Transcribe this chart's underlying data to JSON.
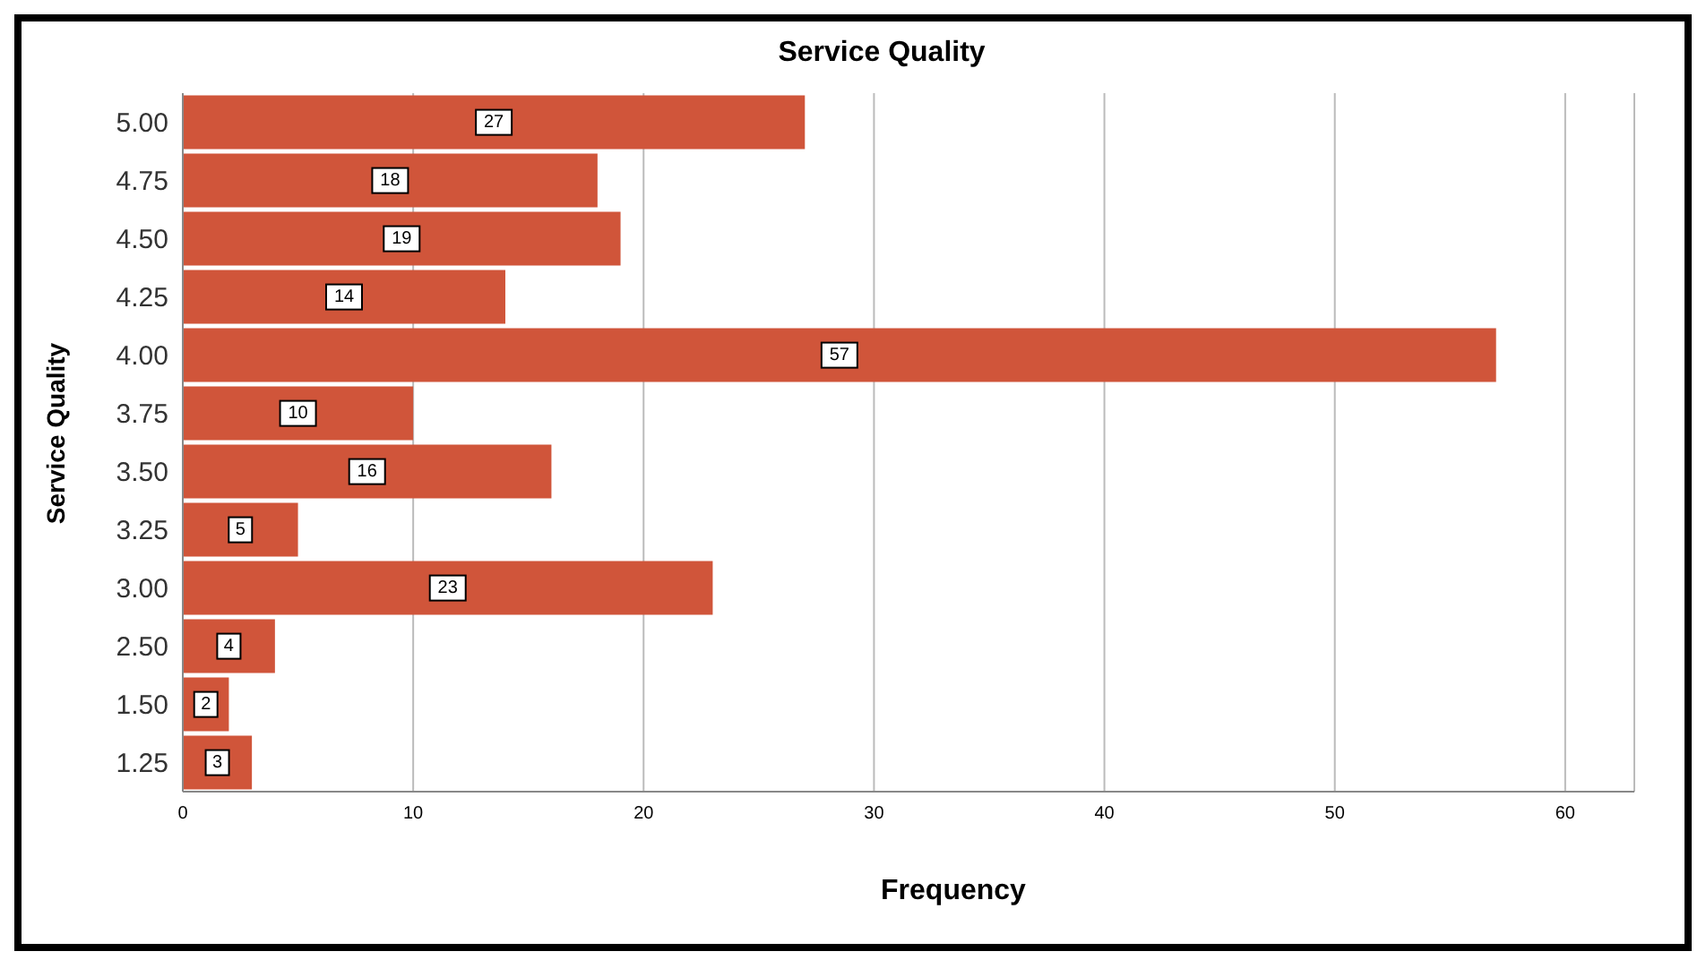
{
  "chart_data": {
    "type": "bar",
    "orientation": "horizontal",
    "title": "Service Quality",
    "xlabel": "Frequency",
    "ylabel": "Service Quality",
    "categories": [
      "5.00",
      "4.75",
      "4.50",
      "4.25",
      "4.00",
      "3.75",
      "3.50",
      "3.25",
      "3.00",
      "2.50",
      "1.50",
      "1.25"
    ],
    "values": [
      27,
      18,
      19,
      14,
      57,
      10,
      16,
      5,
      23,
      4,
      2,
      3
    ],
    "color": "#d0553a",
    "xlim": [
      0,
      63
    ],
    "xticks": [
      0,
      10,
      20,
      30,
      40,
      50,
      60
    ],
    "grid": "x",
    "data_labels": true
  }
}
